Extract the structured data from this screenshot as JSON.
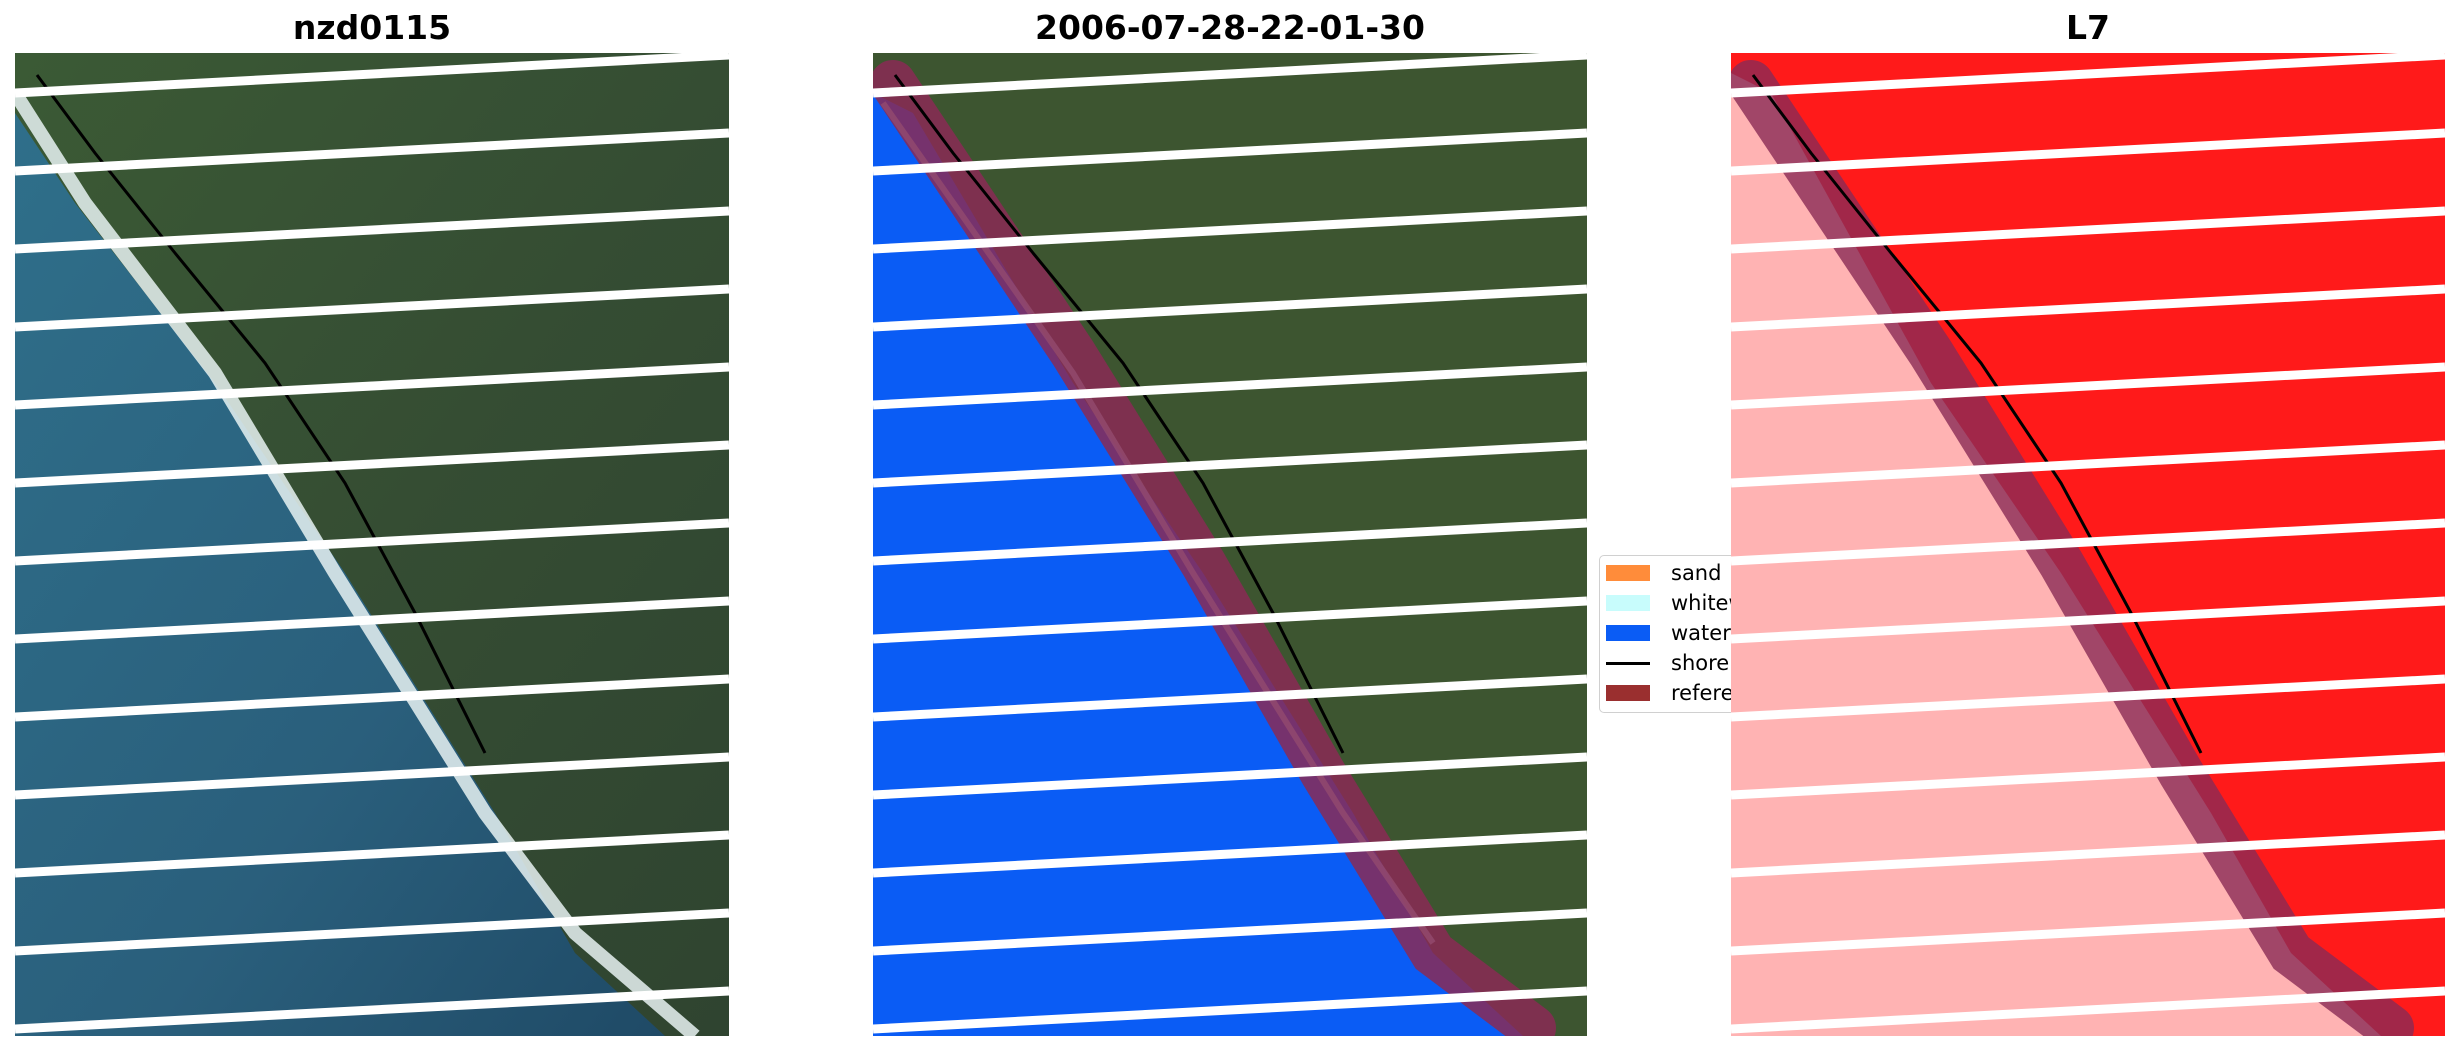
{
  "panels": [
    {
      "title": "nzd0115"
    },
    {
      "title": "2006-07-28-22-01-30"
    },
    {
      "title": "L7"
    }
  ],
  "legend": {
    "items": [
      {
        "label": "sand",
        "color": "#ff8c3a",
        "kind": "patch"
      },
      {
        "label": "whitewater",
        "color": "#c8fcfc",
        "kind": "patch"
      },
      {
        "label": "water",
        "color": "#0a5cf5",
        "kind": "patch"
      },
      {
        "label": "shoreline",
        "color": "#000000",
        "kind": "line"
      },
      {
        "label": "reference shoreline buffer",
        "color": "#9a2f2f",
        "kind": "patch"
      }
    ]
  },
  "colors": {
    "land": "#3d5530",
    "ocean": "#2f6f8a",
    "water_class": "#0a5cf5",
    "buffer": "#8a2a55",
    "index_land": "#ff1a1a",
    "index_water": "#ffb3b3",
    "stripe": "#ffffff"
  }
}
